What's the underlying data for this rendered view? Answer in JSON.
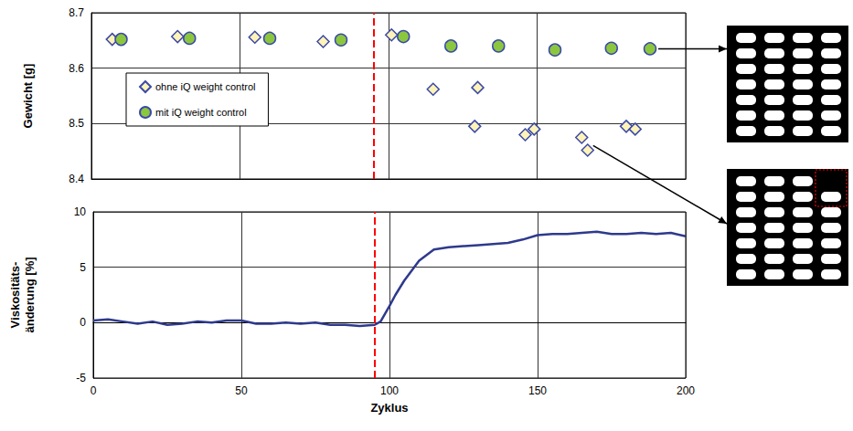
{
  "chart_data": [
    {
      "type": "scatter",
      "ylabel": "Gewicht [g]",
      "xlim": [
        0,
        200
      ],
      "xticks": [
        0,
        50,
        100,
        150,
        200
      ],
      "ylim": [
        8.4,
        8.7
      ],
      "yticks": [
        8.4,
        8.5,
        8.6,
        8.7
      ],
      "tick_labels": "y",
      "grid": true,
      "legend": "left",
      "vline": 95,
      "series": [
        {
          "name": "ohne iQ weight control",
          "color": "#3b4aa8",
          "marker": "diamond",
          "x": [
            7,
            29,
            55,
            78,
            101,
            115,
            130,
            129,
            146,
            149,
            165,
            167,
            180,
            183
          ],
          "values": [
            8.652,
            8.657,
            8.656,
            8.648,
            8.66,
            8.562,
            8.565,
            8.495,
            8.48,
            8.49,
            8.475,
            8.452,
            8.495,
            8.49
          ]
        },
        {
          "name": "mit iQ weight control",
          "color": "#8cc63f",
          "marker": "circle",
          "x": [
            10,
            33,
            60,
            84,
            105,
            121,
            137,
            156,
            175,
            188
          ],
          "values": [
            8.652,
            8.654,
            8.654,
            8.651,
            8.657,
            8.64,
            8.64,
            8.633,
            8.636,
            8.635
          ]
        }
      ]
    },
    {
      "type": "line",
      "xlabel": "Zyklus",
      "ylabel": "Viskositäts-\nänderung [%]",
      "xlim": [
        0,
        200
      ],
      "xticks": [
        0,
        50,
        100,
        150,
        200
      ],
      "ylim": [
        -5,
        10
      ],
      "yticks": [
        -5,
        0,
        5,
        10
      ],
      "grid": true,
      "vline": 95,
      "series": [
        {
          "color": "#2e3a8c",
          "x": [
            0,
            5,
            10,
            15,
            20,
            25,
            30,
            35,
            40,
            45,
            50,
            55,
            60,
            65,
            70,
            75,
            80,
            85,
            90,
            95,
            97,
            100,
            102,
            105,
            110,
            115,
            120,
            125,
            130,
            135,
            140,
            145,
            150,
            155,
            160,
            165,
            170,
            175,
            180,
            185,
            190,
            195,
            200
          ],
          "values": [
            0.2,
            0.3,
            0.1,
            -0.1,
            0.1,
            -0.2,
            -0.1,
            0.1,
            0,
            0.2,
            0.2,
            -0.1,
            -0.1,
            0,
            -0.1,
            0,
            -0.2,
            -0.2,
            -0.3,
            -0.2,
            0.1,
            1.5,
            2.5,
            3.8,
            5.6,
            6.6,
            6.8,
            6.9,
            7.0,
            7.1,
            7.2,
            7.5,
            7.9,
            8.0,
            8.0,
            8.1,
            8.2,
            8.0,
            8.0,
            8.1,
            8.0,
            8.1,
            7.8
          ]
        }
      ]
    }
  ]
}
